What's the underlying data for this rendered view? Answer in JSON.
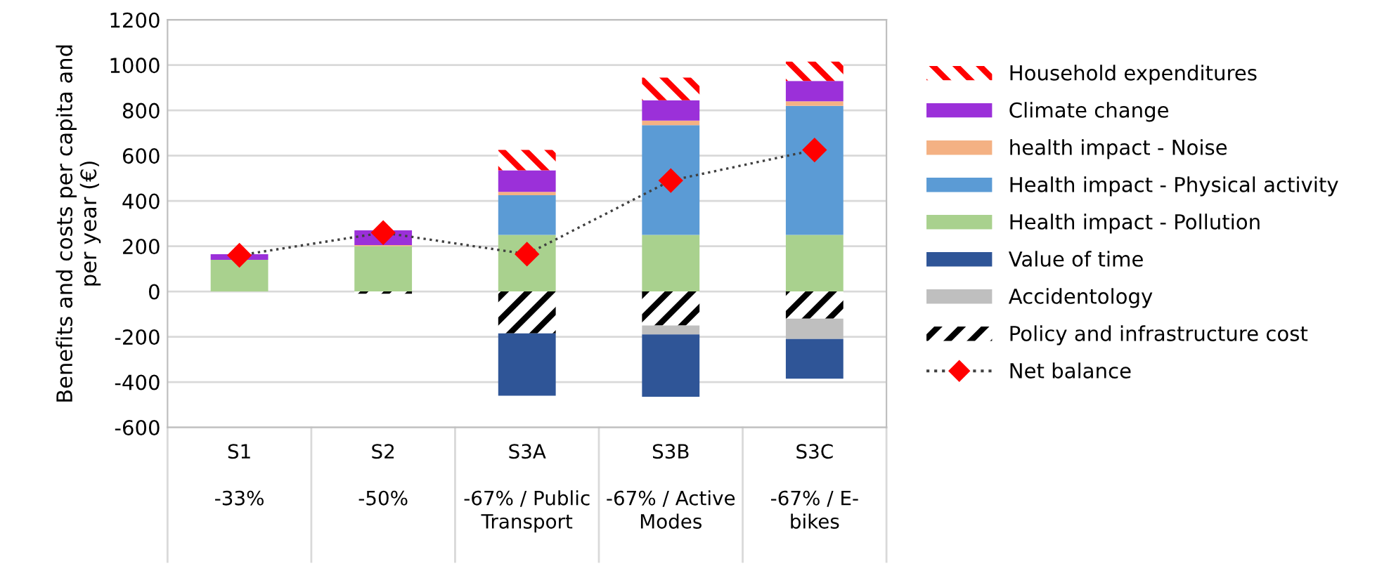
{
  "chart_data": {
    "type": "bar",
    "stacked": true,
    "ylabel": "Benefits and costs per capita and\nper year (€)",
    "categories": [
      "S1\n\n-33%",
      "S2\n\n-50%",
      "S3A\n\n-67% / Public\nTransport",
      "S3B\n\n-67% / Active\nModes",
      "S3C\n\n-67% / E-\nbikes"
    ],
    "series": [
      {
        "name": "Health impact - Pollution",
        "color": "#a9d18e",
        "values": [
          140,
          200,
          250,
          250,
          250
        ]
      },
      {
        "name": "Health impact - Physical activity",
        "color": "#5b9bd5",
        "values": [
          0,
          0,
          175,
          485,
          570
        ]
      },
      {
        "name": "health impact - Noise",
        "color": "#f4b183",
        "values": [
          0,
          5,
          15,
          20,
          20
        ]
      },
      {
        "name": "Climate change",
        "color": "#9b30d9",
        "values": [
          25,
          65,
          95,
          90,
          90
        ]
      },
      {
        "name": "Household expenditures",
        "color": "#ff0000",
        "line_style": "dashed",
        "values": [
          0,
          0,
          90,
          100,
          85
        ]
      },
      {
        "name": "Policy and infrastructure cost",
        "color": "#000000",
        "line_style": "dashed",
        "values": [
          0,
          -10,
          -185,
          -150,
          -120
        ]
      },
      {
        "name": "Accidentology",
        "color": "#bfbfbf",
        "values": [
          0,
          0,
          0,
          -40,
          -90
        ]
      },
      {
        "name": "Value of time",
        "color": "#2f5597",
        "values": [
          0,
          0,
          -275,
          -275,
          -175
        ]
      },
      {
        "name": "Net balance",
        "type": "line",
        "color": "#ff0000",
        "marker": "diamond",
        "line_style": "dotted",
        "values": [
          160,
          260,
          165,
          490,
          625
        ]
      }
    ],
    "ylim": [
      -600,
      1200
    ],
    "yticks": [
      -600,
      -400,
      -200,
      0,
      200,
      400,
      600,
      800,
      1000,
      1200
    ],
    "grid": "y",
    "legend": "right"
  }
}
